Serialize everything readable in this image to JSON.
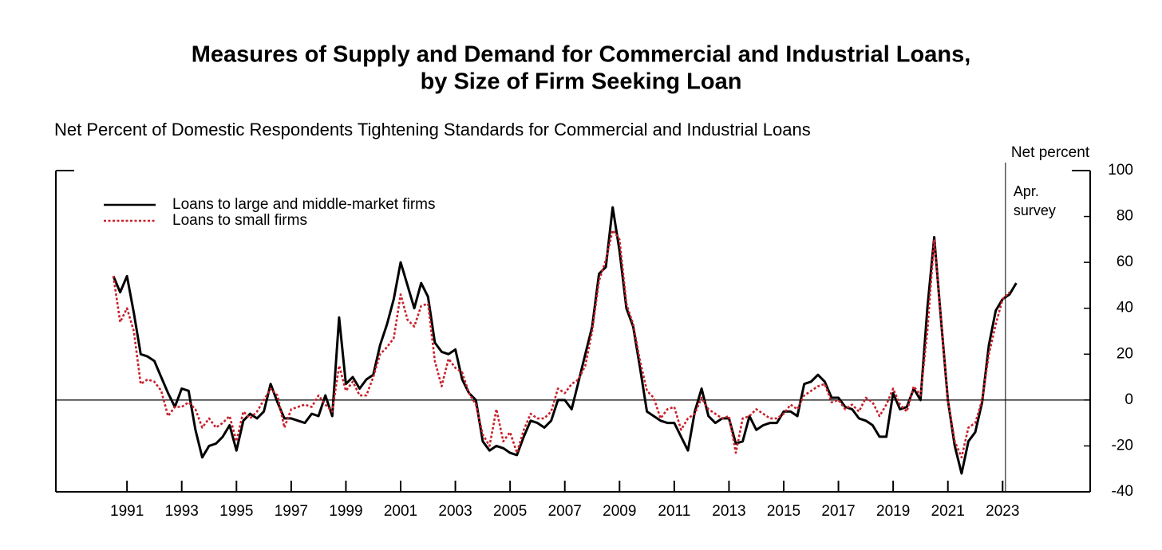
{
  "chart_data": {
    "type": "line",
    "title": [
      "Measures of Supply and Demand for Commercial and Industrial Loans,",
      "by Size of Firm Seeking Loan"
    ],
    "subtitle": "Net Percent of Domestic Respondents Tightening Standards for Commercial and Industrial Loans",
    "y_axis_label": "Net percent",
    "annotation": [
      "Apr.",
      "survey"
    ],
    "x": [
      1990.5,
      1990.75,
      1991,
      1991.25,
      1991.5,
      1991.75,
      1992,
      1992.25,
      1992.5,
      1992.75,
      1993,
      1993.25,
      1993.5,
      1993.75,
      1994,
      1994.25,
      1994.5,
      1994.75,
      1995,
      1995.25,
      1995.5,
      1995.75,
      1996,
      1996.25,
      1996.5,
      1996.75,
      1997,
      1997.25,
      1997.5,
      1997.75,
      1998,
      1998.25,
      1998.5,
      1998.75,
      1999,
      1999.25,
      1999.5,
      1999.75,
      2000,
      2000.25,
      2000.5,
      2000.75,
      2001,
      2001.25,
      2001.5,
      2001.75,
      2002,
      2002.25,
      2002.5,
      2002.75,
      2003,
      2003.25,
      2003.5,
      2003.75,
      2004,
      2004.25,
      2004.5,
      2004.75,
      2005,
      2005.25,
      2005.5,
      2005.75,
      2006,
      2006.25,
      2006.5,
      2006.75,
      2007,
      2007.25,
      2007.5,
      2007.75,
      2008,
      2008.25,
      2008.5,
      2008.75,
      2009,
      2009.25,
      2009.5,
      2009.75,
      2010,
      2010.25,
      2010.5,
      2010.75,
      2011,
      2011.25,
      2011.5,
      2011.75,
      2012,
      2012.25,
      2012.5,
      2012.75,
      2013,
      2013.25,
      2013.5,
      2013.75,
      2014,
      2014.25,
      2014.5,
      2014.75,
      2015,
      2015.25,
      2015.5,
      2015.75,
      2016,
      2016.25,
      2016.5,
      2016.75,
      2017,
      2017.25,
      2017.5,
      2017.75,
      2018,
      2018.25,
      2018.5,
      2018.75,
      2019,
      2019.25,
      2019.5,
      2019.75,
      2020,
      2020.25,
      2020.5,
      2020.75,
      2021,
      2021.25,
      2021.5,
      2021.75,
      2022,
      2022.25,
      2022.5,
      2022.75,
      2023,
      2023.25,
      2023.5
    ],
    "series": [
      {
        "name": "Loans to large and middle-market firms",
        "color": "#000000",
        "linestyle": "solid",
        "values": [
          54,
          47,
          54,
          38,
          20,
          19,
          17,
          10,
          3,
          -3,
          5,
          4,
          -13,
          -25,
          -20,
          -19,
          -16,
          -11,
          -22,
          -9,
          -6,
          -8,
          -5,
          7,
          -1,
          -8,
          -8,
          -9,
          -10,
          -6,
          -7,
          2,
          -7,
          36,
          7,
          10,
          5,
          9,
          11,
          24,
          33,
          44,
          60,
          50,
          40,
          51,
          45,
          25,
          21,
          20,
          22,
          9,
          3,
          0,
          -18,
          -22,
          -20,
          -21,
          -23,
          -24,
          -16,
          -9,
          -10,
          -12,
          -9,
          0,
          0,
          -4,
          8,
          20,
          32,
          55,
          58,
          84,
          65,
          40,
          32,
          14,
          -5,
          -7,
          -9,
          -10,
          -10,
          -16,
          -22,
          -5,
          5,
          -7,
          -10,
          -8,
          -8,
          -19,
          -18,
          -7,
          -13,
          -11,
          -10,
          -10,
          -5,
          -5,
          -7,
          7,
          8,
          11,
          8,
          1,
          1,
          -3,
          -4,
          -8,
          -9,
          -11,
          -16,
          -16,
          3,
          -4,
          -3,
          5,
          0,
          40,
          71,
          35,
          0,
          -20,
          -32,
          -18,
          -14,
          -1,
          24,
          39,
          44,
          46,
          51
        ]
      },
      {
        "name": "Loans to small firms",
        "color": "#c8202a",
        "linestyle": "dotted",
        "values": [
          54,
          34,
          40,
          30,
          7,
          9,
          8,
          4,
          -7,
          -3,
          -3,
          -1,
          -4,
          -12,
          -8,
          -12,
          -10,
          -7,
          -18,
          -5,
          -8,
          -5,
          0,
          5,
          2,
          -12,
          -4,
          -3,
          -2,
          -3,
          2,
          -2,
          -5,
          15,
          4,
          8,
          2,
          2,
          10,
          20,
          23,
          27,
          46,
          35,
          32,
          41,
          42,
          17,
          6,
          18,
          14,
          12,
          3,
          -2,
          -15,
          -20,
          -4,
          -18,
          -14,
          -23,
          -13,
          -6,
          -8,
          -8,
          -5,
          5,
          3,
          7,
          9,
          15,
          30,
          52,
          61,
          74,
          70,
          42,
          33,
          17,
          4,
          1,
          -8,
          -4,
          -3,
          -13,
          -8,
          -6,
          1,
          -4,
          -6,
          -8,
          -7,
          -23,
          -8,
          -7,
          -4,
          -6,
          -8,
          -8,
          -6,
          -2,
          -4,
          2,
          4,
          6,
          7,
          -1,
          0,
          -4,
          -2,
          -5,
          1,
          -1,
          -7,
          -2,
          5,
          -2,
          -5,
          6,
          2,
          30,
          70,
          35,
          0,
          -18,
          -25,
          -12,
          -10,
          0,
          20,
          33,
          44,
          47,
          null
        ]
      }
    ],
    "xlim": [
      1988.4,
      2026.2
    ],
    "xticks": [
      1991,
      1993,
      1995,
      1997,
      1999,
      2001,
      2003,
      2005,
      2007,
      2009,
      2011,
      2013,
      2015,
      2017,
      2019,
      2021,
      2023
    ],
    "ylim": [
      -40,
      100
    ],
    "yticks": [
      -40,
      -20,
      0,
      20,
      40,
      60,
      80,
      100
    ],
    "y_axis_side": "right",
    "legend": "upper left",
    "grid": false
  }
}
